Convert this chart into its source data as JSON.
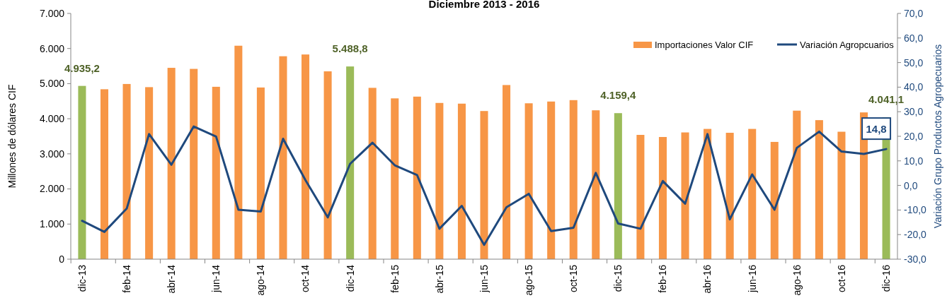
{
  "chart_data": {
    "type": "bar",
    "title": "Diciembre 2013 - 2016",
    "ylabel": "Millones de dólares CIF",
    "y2label": "Variación Grupo Productos Agropecuarios",
    "categories": [
      "dic-13",
      null,
      "feb-14",
      null,
      "abr-14",
      null,
      "jun-14",
      null,
      "ago-14",
      null,
      "oct-14",
      null,
      "dic-14",
      null,
      "feb-15",
      null,
      "abr-15",
      null,
      "jun-15",
      null,
      "ago-15",
      null,
      "oct-15",
      null,
      "dic-15",
      null,
      "feb-16",
      null,
      "abr-16",
      null,
      "jun-16",
      null,
      "ago-16",
      null,
      "oct-16",
      null,
      "dic-16"
    ],
    "series": [
      {
        "name": "Importaciones Valor CIF",
        "color": "#f79646",
        "colors": [
          "#9bbb59",
          "#f79646",
          "#f79646",
          "#f79646",
          "#f79646",
          "#f79646",
          "#f79646",
          "#f79646",
          "#f79646",
          "#f79646",
          "#f79646",
          "#f79646",
          "#9bbb59",
          "#f79646",
          "#f79646",
          "#f79646",
          "#f79646",
          "#f79646",
          "#f79646",
          "#f79646",
          "#f79646",
          "#f79646",
          "#f79646",
          "#f79646",
          "#9bbb59",
          "#f79646",
          "#f79646",
          "#f79646",
          "#f79646",
          "#f79646",
          "#f79646",
          "#f79646",
          "#f79646",
          "#f79646",
          "#f79646",
          "#f79646",
          "#9bbb59"
        ],
        "values": [
          4935.2,
          4840,
          4990,
          4900,
          5450,
          5420,
          4910,
          6080,
          4890,
          5780,
          5830,
          5350,
          5488.8,
          4880,
          4580,
          4630,
          4450,
          4430,
          4220,
          4960,
          4440,
          4490,
          4530,
          4240,
          4159.4,
          3540,
          3480,
          3610,
          3710,
          3600,
          3710,
          3340,
          4230,
          3960,
          3630,
          4180,
          4041.1
        ],
        "value_labels": [
          "4.935,2",
          null,
          null,
          null,
          null,
          null,
          null,
          null,
          null,
          null,
          null,
          null,
          "5.488,8",
          null,
          null,
          null,
          null,
          null,
          null,
          null,
          null,
          null,
          null,
          null,
          "4.159,4",
          null,
          null,
          null,
          null,
          null,
          null,
          null,
          null,
          null,
          null,
          null,
          "4.041,1"
        ]
      },
      {
        "name": "Variación Agropcuarios",
        "type": "line",
        "axis": "y2",
        "color": "#1f497d",
        "values": [
          -14.4,
          -18.9,
          -9.4,
          20.9,
          8.4,
          24.0,
          19.9,
          -9.9,
          -10.6,
          19.0,
          2.2,
          -13.0,
          8.8,
          17.4,
          8.2,
          4.2,
          -17.6,
          -8.3,
          -24.2,
          -8.9,
          -3.4,
          -18.6,
          -17.2,
          5.1,
          -15.5,
          -17.6,
          1.8,
          -7.4,
          20.9,
          -13.8,
          4.5,
          -9.9,
          15.3,
          21.9,
          13.8,
          12.8,
          14.8
        ],
        "value_labels": [
          null,
          null,
          null,
          null,
          null,
          null,
          null,
          null,
          null,
          null,
          null,
          null,
          null,
          null,
          null,
          null,
          null,
          null,
          null,
          null,
          null,
          null,
          null,
          null,
          null,
          null,
          null,
          null,
          null,
          null,
          null,
          null,
          null,
          null,
          null,
          null,
          "14,8"
        ]
      }
    ],
    "ylim": [
      0,
      7000
    ],
    "yticks": [
      {
        "value": 0,
        "label": "0"
      },
      {
        "value": 1000,
        "label": "1.000"
      },
      {
        "value": 2000,
        "label": "2.000"
      },
      {
        "value": 3000,
        "label": "3.000"
      },
      {
        "value": 4000,
        "label": "4.000"
      },
      {
        "value": 5000,
        "label": "5.000"
      },
      {
        "value": 6000,
        "label": "6.000"
      },
      {
        "value": 7000,
        "label": "7.000"
      }
    ],
    "y2lim": [
      -30,
      70
    ],
    "y2ticks": [
      {
        "value": -30,
        "label": "-30,0"
      },
      {
        "value": -20,
        "label": "-20,0"
      },
      {
        "value": -10,
        "label": "-10,0"
      },
      {
        "value": 0,
        "label": "0,0"
      },
      {
        "value": 10,
        "label": "10,0"
      },
      {
        "value": 20,
        "label": "20,0"
      },
      {
        "value": 30,
        "label": "30,0"
      },
      {
        "value": 40,
        "label": "40,0"
      },
      {
        "value": 50,
        "label": "50,0"
      },
      {
        "value": 60,
        "label": "60,0"
      },
      {
        "value": 70,
        "label": "70,0"
      }
    ],
    "legend": "top right",
    "marker": "none",
    "line_style": "solid"
  }
}
